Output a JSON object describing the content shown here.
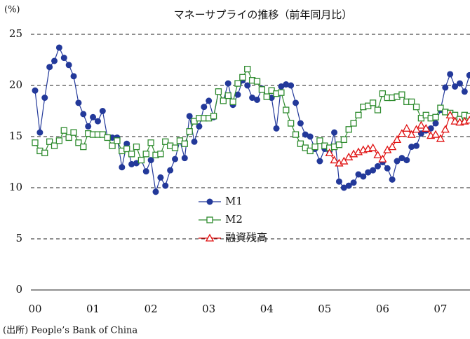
{
  "chart_data": {
    "type": "line",
    "title": "マネーサプライの推移（前年同月比）",
    "y_label": "(%)",
    "source": "(出所) People’s Bank of China",
    "categories": [
      "00",
      null,
      null,
      null,
      null,
      null,
      null,
      null,
      null,
      null,
      null,
      null,
      "01",
      null,
      null,
      null,
      null,
      null,
      null,
      null,
      null,
      null,
      null,
      null,
      "02",
      null,
      null,
      null,
      null,
      null,
      null,
      null,
      null,
      null,
      null,
      null,
      "03",
      null,
      null,
      null,
      null,
      null,
      null,
      null,
      null,
      null,
      null,
      null,
      "04",
      null,
      null,
      null,
      null,
      null,
      null,
      null,
      null,
      null,
      null,
      null,
      "05",
      null,
      null,
      null,
      null,
      null,
      null,
      null,
      null,
      null,
      null,
      null,
      "06",
      null,
      null,
      null,
      null,
      null,
      null,
      null,
      null,
      null,
      null,
      null,
      "07",
      null,
      null,
      null,
      null,
      null,
      null
    ],
    "ylim": [
      0,
      25
    ],
    "yticks": [
      0,
      5,
      10,
      15,
      20,
      25
    ],
    "grid": true,
    "legend": "center",
    "series": [
      {
        "name": "M1",
        "color": "#23399a",
        "marker": "circle",
        "values": [
          19.5,
          15.4,
          18.8,
          21.8,
          22.4,
          23.7,
          22.7,
          22.0,
          20.9,
          18.3,
          17.2,
          16.0,
          16.9,
          16.5,
          17.5,
          14.9,
          14.9,
          14.9,
          12.0,
          14.3,
          12.3,
          12.4,
          12.7,
          11.6,
          12.7,
          9.6,
          11.0,
          10.2,
          11.7,
          12.8,
          14.6,
          12.9,
          17.0,
          14.5,
          16.0,
          17.9,
          18.5,
          16.9,
          19.4,
          18.5,
          20.2,
          18.1,
          19.1,
          20.5,
          20.0,
          18.8,
          18.6,
          19.7,
          18.9,
          18.8,
          15.8,
          19.9,
          20.1,
          20.0,
          18.3,
          16.3,
          15.2,
          15.0,
          13.8,
          12.6,
          13.8,
          13.6,
          15.4,
          10.6,
          10.0,
          10.2,
          10.5,
          11.3,
          11.1,
          11.5,
          11.7,
          12.1,
          12.5,
          11.9,
          10.8,
          12.6,
          12.9,
          12.7,
          14.0,
          14.1,
          15.3,
          15.6,
          15.8,
          16.3,
          17.6,
          19.8,
          21.1,
          19.9,
          20.2,
          19.4,
          21.0
        ]
      },
      {
        "name": "M2",
        "color": "#2e8b2e",
        "marker": "square",
        "values": [
          14.4,
          13.6,
          13.4,
          14.5,
          14.1,
          14.6,
          15.6,
          14.9,
          15.4,
          14.4,
          14.0,
          15.3,
          15.2,
          15.2,
          15.2,
          14.9,
          14.1,
          14.6,
          13.6,
          13.8,
          13.3,
          14.0,
          12.7,
          13.3,
          14.4,
          13.2,
          13.3,
          14.5,
          14.1,
          13.9,
          14.6,
          14.3,
          15.5,
          16.5,
          16.8,
          16.8,
          16.8,
          17.0,
          19.4,
          18.5,
          19.0,
          18.4,
          20.2,
          20.8,
          21.6,
          20.5,
          20.4,
          19.6,
          18.9,
          19.5,
          19.2,
          19.3,
          17.6,
          16.3,
          15.2,
          14.3,
          13.9,
          13.6,
          14.0,
          14.6,
          14.1,
          13.9,
          14.0,
          14.2,
          14.7,
          15.7,
          16.3,
          17.1,
          17.9,
          18.0,
          18.3,
          17.6,
          19.2,
          18.8,
          18.8,
          18.9,
          19.1,
          18.4,
          18.4,
          17.9,
          16.8,
          17.1,
          16.8,
          16.9,
          17.8,
          17.4,
          17.3,
          17.1,
          16.7,
          17.1,
          17.0
        ]
      },
      {
        "name": "融資残高",
        "color": "#e01010",
        "marker": "triangle",
        "values": [
          null,
          null,
          null,
          null,
          null,
          null,
          null,
          null,
          null,
          null,
          null,
          null,
          null,
          null,
          null,
          null,
          null,
          null,
          null,
          null,
          null,
          null,
          null,
          null,
          null,
          null,
          null,
          null,
          null,
          null,
          null,
          null,
          null,
          null,
          null,
          null,
          null,
          null,
          null,
          null,
          null,
          null,
          null,
          null,
          null,
          null,
          null,
          null,
          null,
          null,
          null,
          null,
          null,
          null,
          null,
          null,
          null,
          null,
          null,
          null,
          null,
          13.4,
          12.7,
          12.4,
          12.6,
          13.0,
          13.3,
          13.5,
          13.7,
          13.8,
          13.9,
          13.2,
          12.8,
          13.7,
          14.0,
          14.7,
          15.3,
          15.8,
          15.2,
          15.7,
          16.1,
          15.8,
          15.1,
          15.2,
          14.8,
          15.7,
          17.1,
          16.5,
          16.4,
          16.5,
          16.6
        ]
      }
    ]
  }
}
